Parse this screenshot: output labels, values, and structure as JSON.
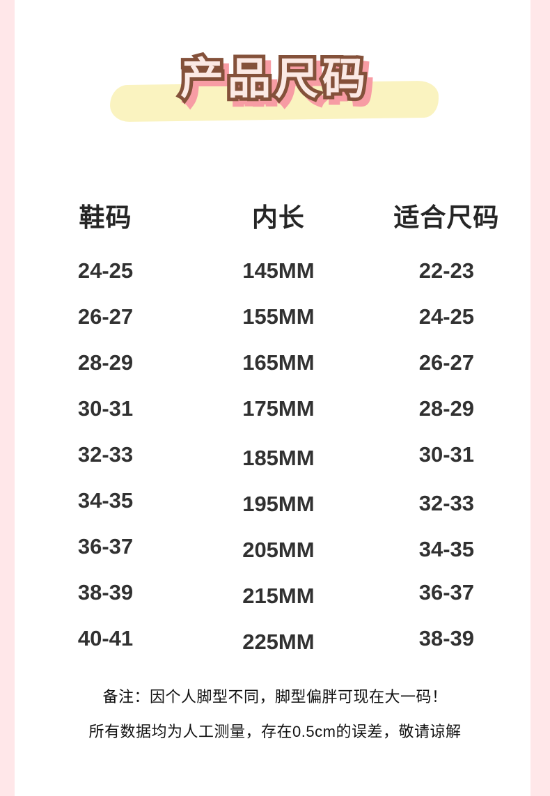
{
  "page": {
    "background_color": "#ffffff",
    "edge_stripe_color": "#ffe7e9"
  },
  "title": {
    "text": "产品尺码",
    "text_fill_color": "#fbe9e4",
    "outline_color": "#84513a",
    "shadow_color": "#f79ca4",
    "highlight_band_color": "#faf3c0"
  },
  "chart_data": {
    "type": "table",
    "title": "产品尺码",
    "columns": [
      "鞋码",
      "内长",
      "适合尺码"
    ],
    "rows": [
      [
        "24-25",
        "145MM",
        "22-23"
      ],
      [
        "26-27",
        "155MM",
        "24-25"
      ],
      [
        "28-29",
        "165MM",
        "26-27"
      ],
      [
        "30-31",
        "175MM",
        "28-29"
      ],
      [
        "32-33",
        "185MM",
        "30-31"
      ],
      [
        "34-35",
        "195MM",
        "32-33"
      ],
      [
        "36-37",
        "205MM",
        "34-35"
      ],
      [
        "38-39",
        "215MM",
        "36-37"
      ],
      [
        "40-41",
        "225MM",
        "38-39"
      ]
    ]
  },
  "notes": {
    "line1": "备注：因个人脚型不同，脚型偏胖可现在大一码！",
    "line2": "所有数据均为人工测量，存在0.5cm的误差，敬请谅解"
  }
}
